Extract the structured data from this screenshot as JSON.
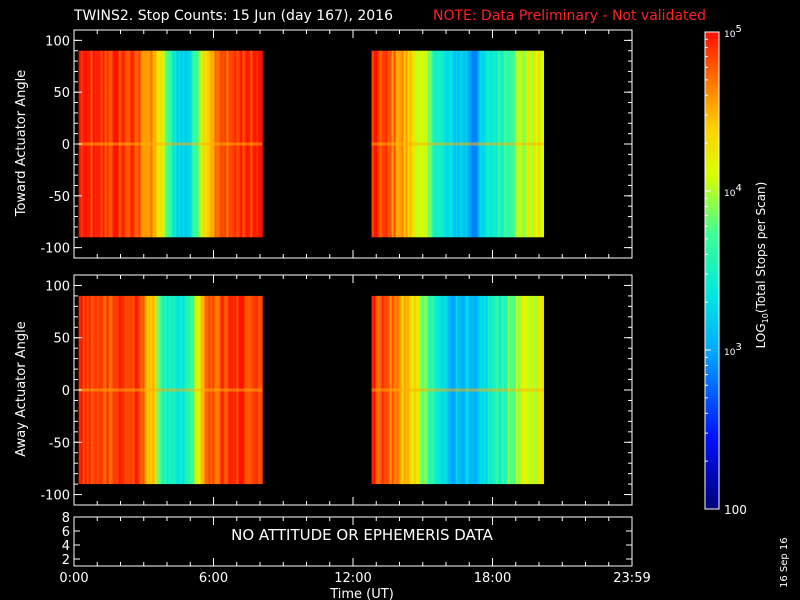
{
  "header": {
    "title": "TWINS2. Stop Counts: 15 Jun (day 167), 2016",
    "note": "NOTE: Data Preliminary - Not validated",
    "note_color": "#ff2020"
  },
  "side_date": "16 Sep 16",
  "status_message": "NO ATTITUDE OR EPHEMERIS DATA",
  "chart_data": [
    {
      "type": "heatmap",
      "ylabel": "Toward Actuator Angle",
      "xlabel": "",
      "ylim": [
        -110,
        110
      ],
      "yticks": [
        "100",
        "50",
        "0",
        "-50",
        "-100"
      ],
      "xlim_hours": [
        0,
        24
      ],
      "y_span": [
        -90,
        90
      ],
      "data_intervals_hours": [
        [
          0.2,
          8.1
        ],
        [
          12.8,
          20.2
        ]
      ],
      "profile": {
        "hours": [
          0.2,
          1.0,
          2.0,
          2.8,
          3.4,
          3.8,
          4.1,
          4.6,
          5.0,
          5.6,
          6.2,
          6.8,
          7.4,
          8.1,
          12.8,
          13.4,
          14.0,
          14.6,
          15.0,
          15.4,
          16.0,
          16.4,
          16.8,
          17.2,
          17.8,
          18.4,
          19.0,
          19.6,
          20.2
        ],
        "log10_counts": [
          4.95,
          4.85,
          4.9,
          4.75,
          4.5,
          4.15,
          3.6,
          3.2,
          3.3,
          4.4,
          4.7,
          4.85,
          4.9,
          4.95,
          4.9,
          4.8,
          4.6,
          4.3,
          4.0,
          3.7,
          3.25,
          3.2,
          3.2,
          2.9,
          3.35,
          3.6,
          3.9,
          4.1,
          4.2
        ]
      }
    },
    {
      "type": "heatmap",
      "ylabel": "Away Actuator Angle",
      "xlabel": "",
      "ylim": [
        -110,
        110
      ],
      "yticks": [
        "100",
        "50",
        "0",
        "-50",
        "-100"
      ],
      "xlim_hours": [
        0,
        24
      ],
      "y_span": [
        -90,
        90
      ],
      "data_intervals_hours": [
        [
          0.2,
          8.1
        ],
        [
          12.8,
          20.2
        ]
      ],
      "profile": {
        "hours": [
          0.2,
          1.0,
          2.0,
          2.8,
          3.4,
          3.8,
          4.1,
          4.6,
          5.0,
          5.6,
          6.2,
          6.8,
          7.4,
          8.1,
          12.8,
          13.4,
          14.0,
          14.6,
          15.0,
          15.4,
          16.0,
          16.4,
          16.8,
          17.2,
          17.8,
          18.4,
          19.0,
          19.6,
          20.2
        ],
        "log10_counts": [
          4.9,
          4.8,
          4.9,
          4.8,
          4.4,
          3.6,
          3.4,
          3.3,
          3.6,
          4.6,
          4.8,
          4.85,
          4.9,
          4.9,
          4.9,
          4.8,
          4.6,
          4.3,
          3.9,
          3.5,
          3.2,
          3.1,
          3.2,
          2.9,
          3.4,
          3.6,
          3.9,
          4.1,
          4.2
        ]
      }
    },
    {
      "type": "line",
      "ylabel": "",
      "xlabel": "Time (UT)",
      "ylim": [
        1,
        8
      ],
      "yticks": [
        "8",
        "6",
        "4",
        "2"
      ],
      "xticks": [
        "0:00",
        "6:00",
        "12:00",
        "18:00",
        "23:59"
      ],
      "series": []
    }
  ],
  "colorbar": {
    "label": "LOG10(Total Stops per Scan)",
    "label_base": "LOG",
    "label_sub": "10",
    "label_rest": "(Total Stops per Scan)",
    "range_log10": [
      2,
      5
    ],
    "ticks": [
      {
        "log": 5,
        "base": "10",
        "exp": "5",
        "plain": ""
      },
      {
        "log": 4,
        "base": "10",
        "exp": "4",
        "plain": ""
      },
      {
        "log": 3,
        "base": "10",
        "exp": "3",
        "plain": ""
      },
      {
        "log": 2,
        "base": "",
        "exp": "",
        "plain": "100"
      }
    ]
  }
}
